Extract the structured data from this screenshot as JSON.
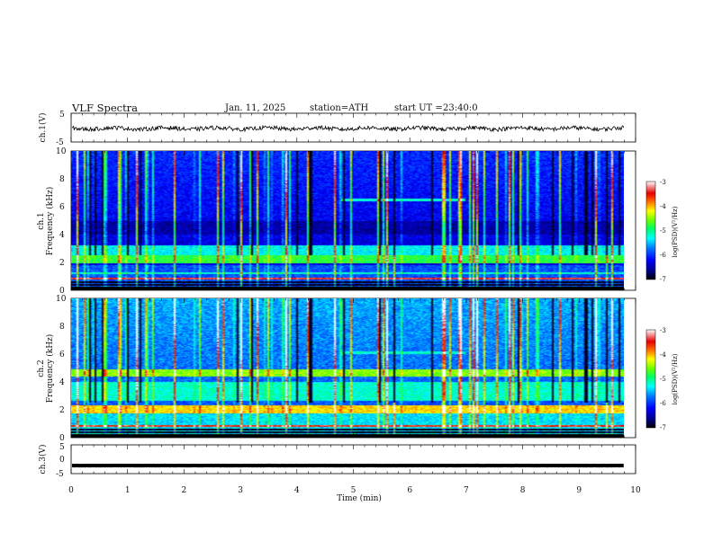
{
  "header": {
    "title": "VLF Spectra",
    "date": "Jan. 11, 2025",
    "station": "station=ATH",
    "start_ut": "start UT =",
    "start_time": "23:40:0"
  },
  "chart_data": [
    {
      "type": "line",
      "panel": "ch1-waveform",
      "ylabel": "ch.1(V)",
      "ylim": [
        -5,
        5
      ],
      "yticks": [
        "5",
        "-5"
      ],
      "xlim": [
        0,
        10
      ],
      "approx_level_v": -0.3,
      "color": "#000000"
    },
    {
      "type": "heatmap",
      "panel": "ch1-spectrogram",
      "ylabel": "ch.1",
      "ylabel2": "Frequency (kHz)",
      "ylim": [
        0,
        10
      ],
      "yticks": [
        "0",
        "2",
        "4",
        "6",
        "8",
        "10"
      ],
      "xlim": [
        0,
        9.8
      ],
      "colorbar": {
        "label": "log(PSD)(V²/Hz)",
        "ticks": [
          "-3",
          "-4",
          "-5",
          "-6",
          "-7"
        ],
        "range": [
          -7,
          -3
        ]
      },
      "features": [
        {
          "name": "strong narrowband transmitter lines",
          "freq_khz": [
            0.3,
            0.5,
            0.8
          ]
        },
        {
          "name": "enhanced band",
          "freq_khz": [
            2.0,
            2.4
          ]
        },
        {
          "name": "tone band",
          "time_min": [
            4.8,
            7.0
          ],
          "freq_khz": [
            6.4,
            6.6
          ]
        }
      ]
    },
    {
      "type": "heatmap",
      "panel": "ch2-spectrogram",
      "ylabel": "ch.2",
      "ylabel2": "Frequency (kHz)",
      "ylim": [
        0,
        10
      ],
      "yticks": [
        "0",
        "2",
        "4",
        "6",
        "8",
        "10"
      ],
      "xlim": [
        0,
        9.8
      ],
      "colorbar": {
        "label": "log(PSD)(V²/Hz)",
        "ticks": [
          "-3",
          "-4",
          "-5",
          "-6",
          "-7"
        ],
        "range": [
          -7,
          -3
        ]
      },
      "features": [
        {
          "name": "strong band",
          "freq_khz": [
            1.8,
            2.2
          ]
        },
        {
          "name": "strong band",
          "freq_khz": [
            4.5,
            4.8
          ]
        },
        {
          "name": "tone band",
          "time_min": [
            4.8,
            7.0
          ],
          "freq_khz": [
            6.0,
            6.2
          ]
        }
      ]
    },
    {
      "type": "line",
      "panel": "ch3-waveform",
      "ylabel": "ch.3(V)",
      "ylim": [
        -5,
        5
      ],
      "yticks": [
        "5",
        "0",
        "-5"
      ],
      "xlim": [
        0,
        10
      ],
      "approx_level_v": -2.2,
      "color": "#000000"
    }
  ],
  "xaxis": {
    "label": "Time (min)",
    "ticks": [
      "0",
      "1",
      "2",
      "3",
      "4",
      "5",
      "6",
      "7",
      "8",
      "9",
      "10"
    ]
  },
  "colors": {
    "axis": "#000000",
    "background": "#ffffff",
    "colormap": [
      "#000000",
      "#00007f",
      "#0000ff",
      "#0055ff",
      "#00c8ff",
      "#00ffb4",
      "#00ff3c",
      "#b4ff00",
      "#ffe600",
      "#ff5000",
      "#e60000",
      "#ffffff"
    ]
  }
}
